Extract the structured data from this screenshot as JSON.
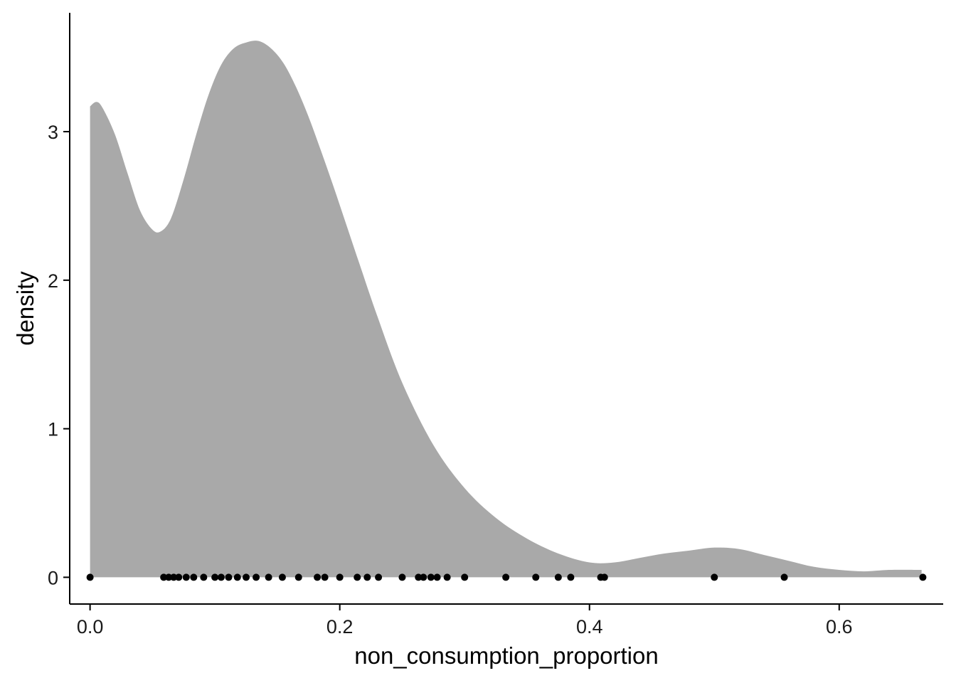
{
  "chart_data": {
    "type": "area",
    "title": "",
    "xlabel": "non_consumption_proportion",
    "ylabel": "density",
    "xlim": [
      -0.0163,
      0.6833
    ],
    "ylim": [
      -0.18,
      3.8
    ],
    "x_ticks": [
      0.0,
      0.2,
      0.4,
      0.6
    ],
    "x_tick_labels": [
      "0.0",
      "0.2",
      "0.4",
      "0.6"
    ],
    "y_ticks": [
      0,
      1,
      2,
      3
    ],
    "y_tick_labels": [
      "0",
      "1",
      "2",
      "3"
    ],
    "grid": false,
    "legend": "none",
    "fill_color": "#a9a9a9",
    "point_color": "#000000",
    "density_curve": {
      "x": [
        0.0,
        0.005,
        0.01,
        0.02,
        0.03,
        0.04,
        0.05,
        0.057,
        0.065,
        0.075,
        0.085,
        0.095,
        0.105,
        0.115,
        0.125,
        0.135,
        0.145,
        0.155,
        0.165,
        0.175,
        0.185,
        0.195,
        0.205,
        0.215,
        0.23,
        0.25,
        0.275,
        0.3,
        0.325,
        0.35,
        0.375,
        0.4,
        0.42,
        0.44,
        0.46,
        0.48,
        0.5,
        0.52,
        0.54,
        0.56,
        0.58,
        0.6,
        0.62,
        0.64,
        0.666
      ],
      "y": [
        3.17,
        3.2,
        3.16,
        2.98,
        2.72,
        2.47,
        2.34,
        2.33,
        2.42,
        2.68,
        2.98,
        3.25,
        3.45,
        3.56,
        3.6,
        3.61,
        3.56,
        3.46,
        3.3,
        3.1,
        2.87,
        2.63,
        2.38,
        2.13,
        1.76,
        1.31,
        0.89,
        0.6,
        0.4,
        0.26,
        0.16,
        0.1,
        0.1,
        0.13,
        0.16,
        0.18,
        0.2,
        0.19,
        0.15,
        0.11,
        0.07,
        0.05,
        0.04,
        0.05,
        0.05
      ]
    },
    "rug_points": [
      0.0,
      0.059,
      0.063,
      0.067,
      0.071,
      0.077,
      0.083,
      0.091,
      0.1,
      0.105,
      0.111,
      0.118,
      0.125,
      0.133,
      0.143,
      0.154,
      0.167,
      0.182,
      0.188,
      0.2,
      0.214,
      0.222,
      0.231,
      0.25,
      0.263,
      0.267,
      0.273,
      0.278,
      0.286,
      0.3,
      0.333,
      0.357,
      0.375,
      0.385,
      0.409,
      0.412,
      0.5,
      0.556,
      0.667
    ]
  }
}
